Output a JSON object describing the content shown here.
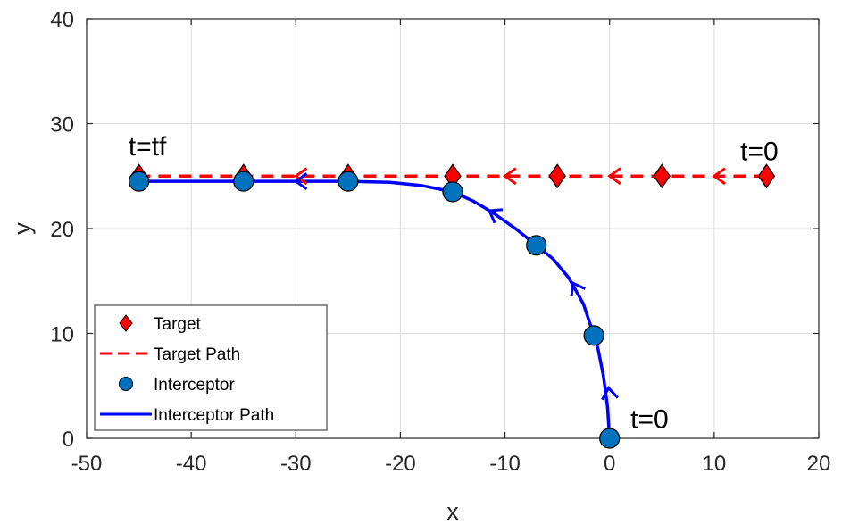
{
  "chart_data": {
    "type": "line",
    "title": "",
    "xlabel": "x",
    "ylabel": "y",
    "xlim": [
      -50,
      20
    ],
    "ylim": [
      0,
      40
    ],
    "xticks": [
      -50,
      -40,
      -30,
      -20,
      -10,
      0,
      10,
      20
    ],
    "yticks": [
      0,
      10,
      20,
      30,
      40
    ],
    "grid": true,
    "legend_position": "bottom-left",
    "series": [
      {
        "name": "Target",
        "kind": "marker",
        "marker": "diamond",
        "color": "#ff0000",
        "points": [
          [
            15,
            25
          ],
          [
            5,
            25
          ],
          [
            -5,
            25
          ],
          [
            -15,
            25
          ],
          [
            -25,
            25
          ],
          [
            -35,
            25
          ],
          [
            -45,
            25
          ]
        ]
      },
      {
        "name": "Target Path",
        "kind": "line",
        "style": "dashed",
        "color": "#ff0000",
        "points": [
          [
            15,
            25
          ],
          [
            -45,
            25
          ]
        ],
        "direction_arrows_x": [
          10,
          0,
          -10,
          -30
        ]
      },
      {
        "name": "Interceptor",
        "kind": "marker",
        "marker": "circle",
        "color": "#0072bd",
        "points": [
          [
            0,
            0
          ],
          [
            -1.5,
            9.8
          ],
          [
            -7,
            18.4
          ],
          [
            -15,
            23.5
          ],
          [
            -25,
            24.5
          ],
          [
            -35,
            24.5
          ],
          [
            -45,
            24.5
          ]
        ]
      },
      {
        "name": "Interceptor Path",
        "kind": "line",
        "style": "solid",
        "color": "#0000ff",
        "points": [
          [
            0,
            0
          ],
          [
            -0.2,
            3
          ],
          [
            -0.6,
            6
          ],
          [
            -1.1,
            8.5
          ],
          [
            -1.5,
            9.8
          ],
          [
            -2.5,
            12.8
          ],
          [
            -3.9,
            15.3
          ],
          [
            -5.4,
            17.1
          ],
          [
            -7,
            18.4
          ],
          [
            -9,
            20
          ],
          [
            -11.3,
            21.6
          ],
          [
            -13,
            22.6
          ],
          [
            -15,
            23.5
          ],
          [
            -18,
            24.1
          ],
          [
            -21,
            24.4
          ],
          [
            -25,
            24.5
          ],
          [
            -35,
            24.5
          ],
          [
            -45,
            24.5
          ]
        ],
        "direction_arrows": [
          [
            -0.1,
            4.8
          ],
          [
            -3.5,
            14.8
          ],
          [
            -11.5,
            21.7
          ],
          [
            -30,
            24.5
          ]
        ]
      }
    ],
    "annotations": [
      {
        "text": "t=tf",
        "x": -46,
        "y": 27
      },
      {
        "text": "t=0",
        "x": 12.5,
        "y": 26.5
      },
      {
        "text": "t=0",
        "x": 2,
        "y": 1
      }
    ]
  }
}
